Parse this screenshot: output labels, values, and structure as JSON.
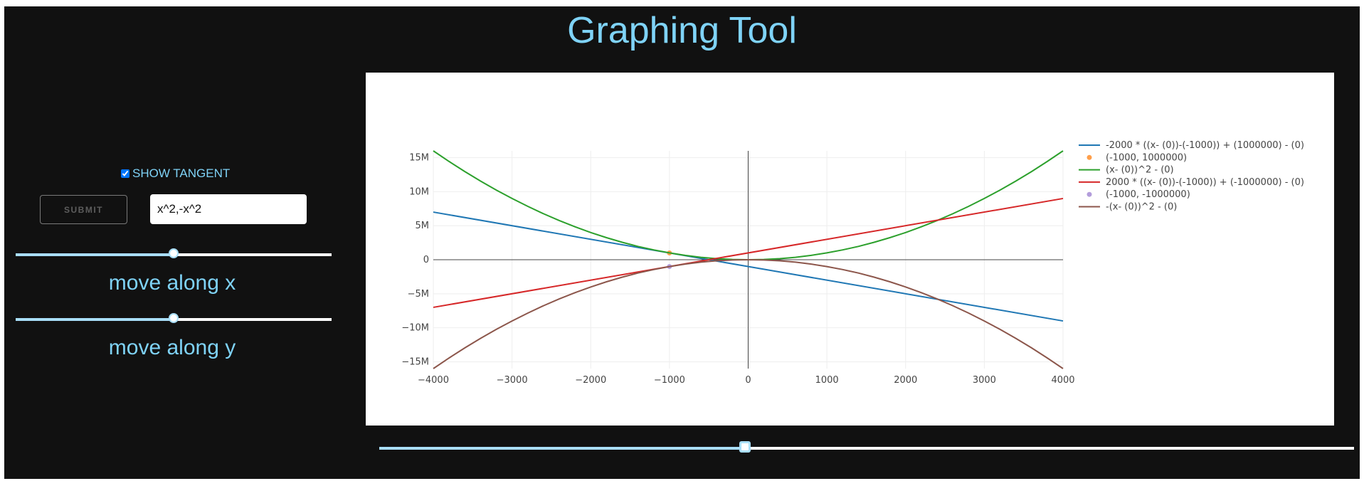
{
  "title": "Graphing Tool",
  "controls": {
    "tangent_label": "SHOW TANGENT",
    "tangent_checked": true,
    "submit_label": "SUBMIT",
    "expression_value": "x^2,-x^2",
    "slider_x_label": "move along x",
    "slider_y_label": "move along y",
    "slider_x_fraction": 0.5,
    "slider_y_fraction": 0.5,
    "bottom_slider_fraction": 0.375
  },
  "colors": {
    "accent": "#7fd3f7",
    "background": "#111111",
    "slider_track": "#a9def9"
  },
  "chart_data": {
    "type": "line",
    "title": "",
    "xlabel": "",
    "ylabel": "",
    "xlim": [
      -4000,
      4000
    ],
    "ylim": [
      -16000000,
      16000000
    ],
    "x_ticks": [
      -4000,
      -3000,
      -2000,
      -1000,
      0,
      1000,
      2000,
      3000,
      4000
    ],
    "x_tick_labels": [
      "−4000",
      "−3000",
      "−2000",
      "−1000",
      "0",
      "1000",
      "2000",
      "3000",
      "4000"
    ],
    "y_ticks": [
      15000000,
      10000000,
      5000000,
      0,
      -5000000,
      -10000000,
      -15000000
    ],
    "y_tick_labels": [
      "15M",
      "10M",
      "5M",
      "0",
      "−5M",
      "−10M",
      "−15M"
    ],
    "grid": true,
    "legend_placement": "top-right",
    "series": [
      {
        "name": "-2000 * ((x- (0))-(-1000)) + (1000000) - (0)",
        "kind": "line",
        "color": "#1f77b4",
        "x": [
          -4000,
          4000
        ],
        "y": [
          7000000,
          -9000000
        ]
      },
      {
        "name": "(-1000, 1000000)",
        "kind": "point",
        "color": "#ff9f4a",
        "x": [
          -1000
        ],
        "y": [
          1000000
        ]
      },
      {
        "name": "(x- (0))^2 - (0)",
        "kind": "curve",
        "color": "#2ca02c",
        "fn": "x^2",
        "x": [
          -4000,
          -3000,
          -2000,
          -1000,
          0,
          1000,
          2000,
          3000,
          4000
        ],
        "y": [
          16000000,
          9000000,
          4000000,
          1000000,
          0,
          1000000,
          4000000,
          9000000,
          16000000
        ]
      },
      {
        "name": "2000 * ((x- (0))-(-1000)) + (-1000000) - (0)",
        "kind": "line",
        "color": "#d62728",
        "x": [
          -4000,
          4000
        ],
        "y": [
          -7000000,
          9000000
        ]
      },
      {
        "name": "(-1000, -1000000)",
        "kind": "point",
        "color": "#b39ddb",
        "x": [
          -1000
        ],
        "y": [
          -1000000
        ]
      },
      {
        "name": "-(x- (0))^2 - (0)",
        "kind": "curve",
        "color": "#8c564b",
        "fn": "-x^2",
        "x": [
          -4000,
          -3000,
          -2000,
          -1000,
          0,
          1000,
          2000,
          3000,
          4000
        ],
        "y": [
          -16000000,
          -9000000,
          -4000000,
          -1000000,
          0,
          -1000000,
          -4000000,
          -9000000,
          -16000000
        ]
      }
    ]
  }
}
